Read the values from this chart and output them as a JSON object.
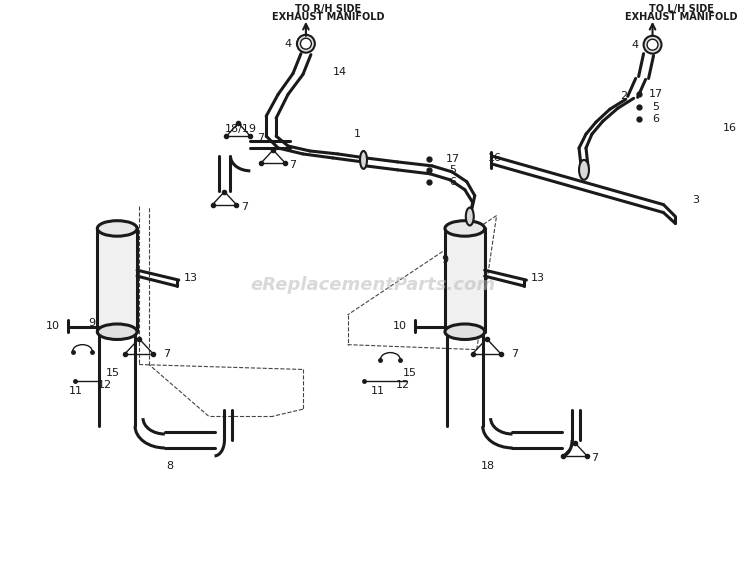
{
  "bg_color": "#ffffff",
  "line_color": "#1a1a1a",
  "watermark": "eReplacementParts.com",
  "watermark_color": "#bbbbbb",
  "arrow_top": [
    "TO R/H SIDE",
    "EXHAUST MANIFOLD"
  ],
  "arrow_right": [
    "TO L/H SIDE",
    "EXHAUST MANIFOLD"
  ],
  "fig_w": 7.5,
  "fig_h": 5.85,
  "dpi": 100
}
